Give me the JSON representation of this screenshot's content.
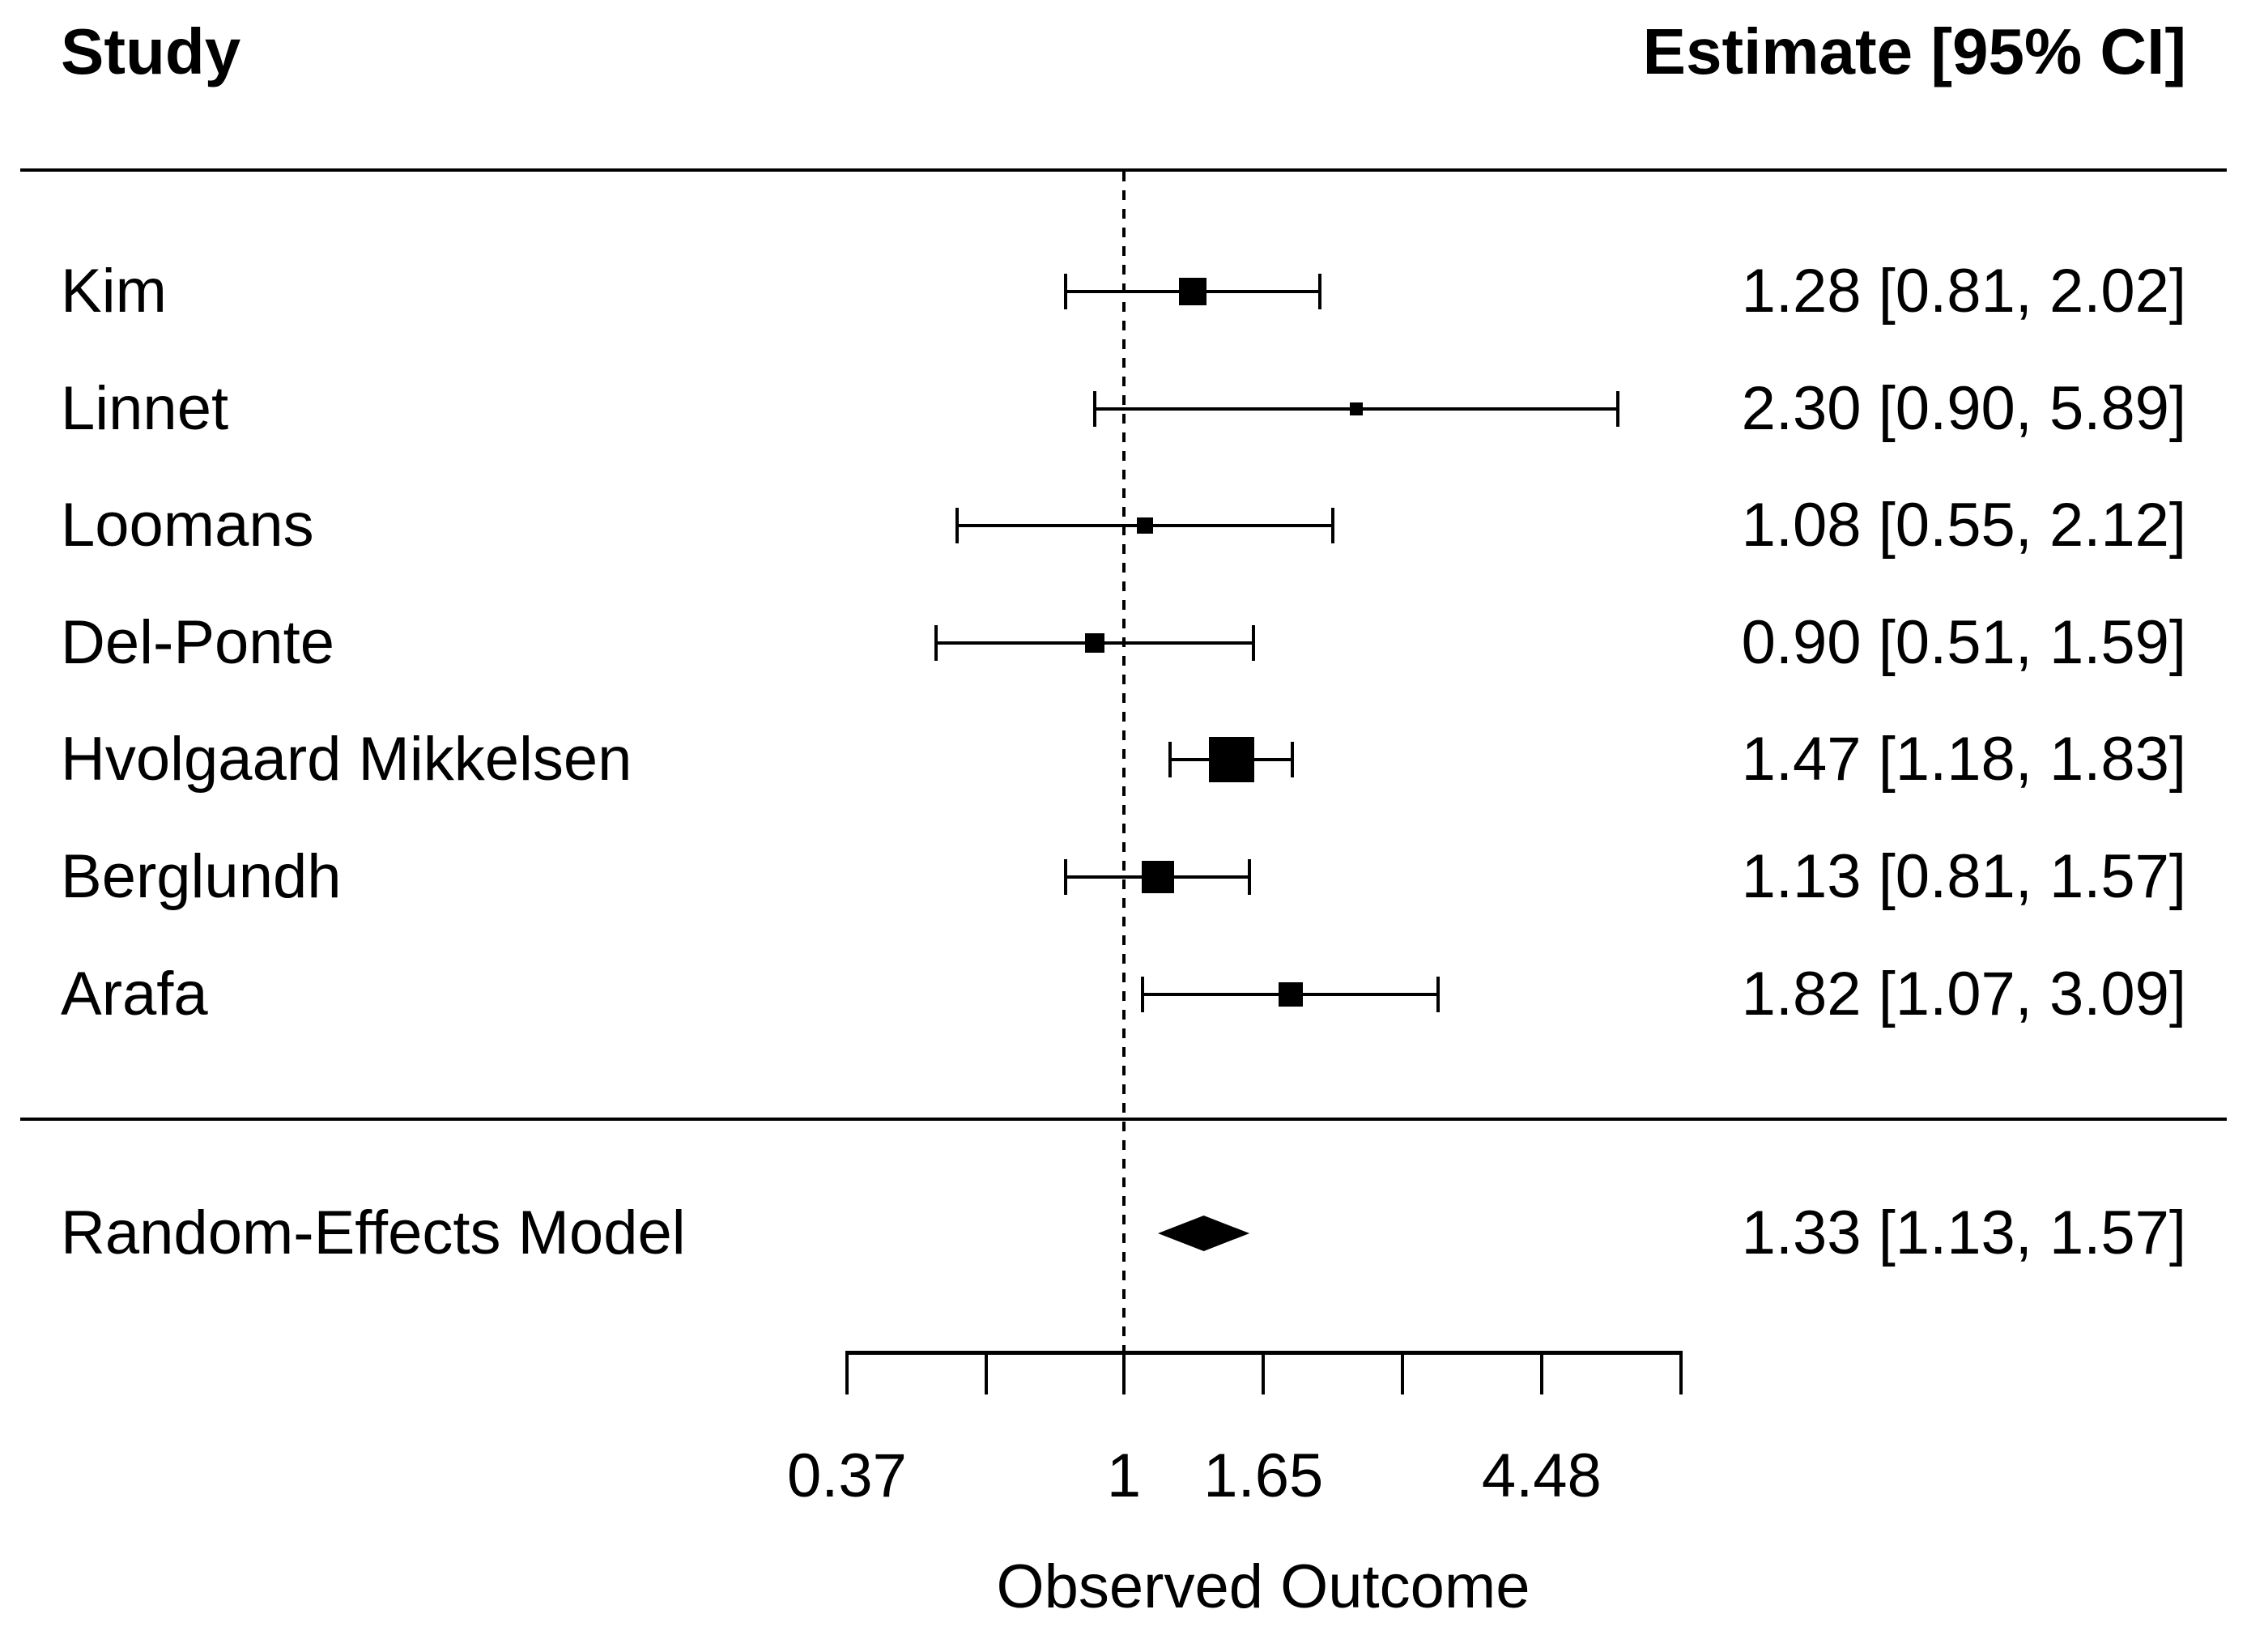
{
  "header": {
    "study": "Study",
    "estimate": "Estimate [95% CI]"
  },
  "chart_data": {
    "type": "forest",
    "x_scale": "log",
    "xlabel": "Observed Outcome",
    "xlim": [
      0.37,
      7.39
    ],
    "reference_line": 1,
    "x_ticks": [
      {
        "value": 0.37,
        "label": "0.37"
      },
      {
        "value": 0.61,
        "label": ""
      },
      {
        "value": 1.0,
        "label": "1"
      },
      {
        "value": 1.65,
        "label": "1.65"
      },
      {
        "value": 2.72,
        "label": ""
      },
      {
        "value": 4.48,
        "label": "4.48"
      },
      {
        "value": 7.39,
        "label": ""
      }
    ],
    "studies": [
      {
        "name": "Kim",
        "estimate": 1.28,
        "ci_lower": 0.81,
        "ci_upper": 2.02,
        "label": "1.28 [0.81, 2.02]",
        "marker_size": 34
      },
      {
        "name": "Linnet",
        "estimate": 2.3,
        "ci_lower": 0.9,
        "ci_upper": 5.89,
        "label": "2.30 [0.90, 5.89]",
        "marker_size": 16
      },
      {
        "name": "Loomans",
        "estimate": 1.08,
        "ci_lower": 0.55,
        "ci_upper": 2.12,
        "label": "1.08 [0.55, 2.12]",
        "marker_size": 20
      },
      {
        "name": "Del-Ponte",
        "estimate": 0.9,
        "ci_lower": 0.51,
        "ci_upper": 1.59,
        "label": "0.90 [0.51, 1.59]",
        "marker_size": 24
      },
      {
        "name": "Hvolgaard Mikkelsen",
        "estimate": 1.47,
        "ci_lower": 1.18,
        "ci_upper": 1.83,
        "label": "1.47 [1.18, 1.83]",
        "marker_size": 56
      },
      {
        "name": "Berglundh",
        "estimate": 1.13,
        "ci_lower": 0.81,
        "ci_upper": 1.57,
        "label": "1.13 [0.81, 1.57]",
        "marker_size": 40
      },
      {
        "name": "Arafa",
        "estimate": 1.82,
        "ci_lower": 1.07,
        "ci_upper": 3.09,
        "label": "1.82 [1.07, 3.09]",
        "marker_size": 30
      }
    ],
    "summary": {
      "name": "Random-Effects Model",
      "estimate": 1.33,
      "ci_lower": 1.13,
      "ci_upper": 1.57,
      "label": "1.33 [1.13, 1.57]"
    }
  }
}
